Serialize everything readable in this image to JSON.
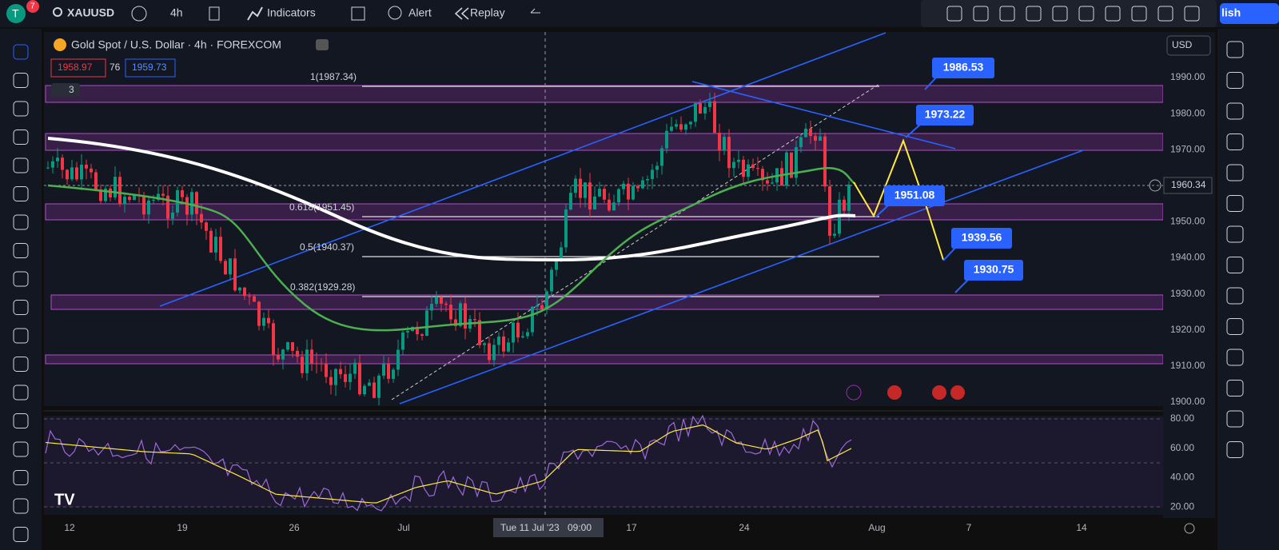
{
  "topbar": {
    "avatar": "T",
    "badge": "7",
    "symbol": "XAUUSD",
    "interval": "4h",
    "indicators": "Indicators",
    "alert": "Alert",
    "replay": "Replay",
    "publish": "lish"
  },
  "legend": {
    "title": "Gold Spot / U.S. Dollar · 4h · FOREXCOM",
    "bid": "1958.97",
    "spread": "76",
    "ask": "1959.73",
    "indicator_count": "3"
  },
  "currency": "USD",
  "price_axis": [
    "1990.00",
    "1980.00",
    "1970.00",
    "1960.00",
    "1950.00",
    "1940.00",
    "1930.00",
    "1920.00",
    "1910.00",
    "1900.00"
  ],
  "current_price": "1960.34",
  "rsi_axis": [
    "80.00",
    "60.00",
    "40.00",
    "20.00"
  ],
  "fib_levels": [
    "1(1987.34)",
    "0.618(1951.45)",
    "0.5(1940.37)",
    "0.382(1929.28)"
  ],
  "callouts": [
    "1986.53",
    "1973.22",
    "1951.08",
    "1939.56",
    "1930.75"
  ],
  "time_axis": [
    "12",
    "19",
    "26",
    "Jul",
    "17",
    "24",
    "Aug",
    "7",
    "14"
  ],
  "crosshair_time": "Tue 11 Jul '23",
  "crosshair_clock": "09:00"
}
